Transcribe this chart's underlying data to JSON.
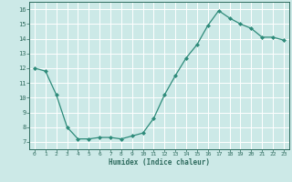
{
  "x": [
    0,
    1,
    2,
    3,
    4,
    5,
    6,
    7,
    8,
    9,
    10,
    11,
    12,
    13,
    14,
    15,
    16,
    17,
    18,
    19,
    20,
    21,
    22,
    23
  ],
  "y": [
    12.0,
    11.8,
    10.2,
    8.0,
    7.2,
    7.2,
    7.3,
    7.3,
    7.2,
    7.4,
    7.6,
    8.6,
    10.2,
    11.5,
    12.7,
    13.6,
    14.9,
    15.9,
    15.4,
    15.0,
    14.7,
    14.1,
    14.1,
    13.9
  ],
  "title": "",
  "xlabel": "Humidex (Indice chaleur)",
  "ylabel": "",
  "xlim": [
    -0.5,
    23.5
  ],
  "ylim": [
    6.5,
    16.5
  ],
  "yticks": [
    7,
    8,
    9,
    10,
    11,
    12,
    13,
    14,
    15,
    16
  ],
  "xticks": [
    0,
    1,
    2,
    3,
    4,
    5,
    6,
    7,
    8,
    9,
    10,
    11,
    12,
    13,
    14,
    15,
    16,
    17,
    18,
    19,
    20,
    21,
    22,
    23
  ],
  "line_color": "#2e8b7a",
  "marker": "D",
  "marker_size": 2.0,
  "bg_color": "#cce9e7",
  "grid_color": "#ffffff",
  "tick_color": "#2e6b5e",
  "label_color": "#2e6b5e",
  "spine_color": "#2e6b5e"
}
